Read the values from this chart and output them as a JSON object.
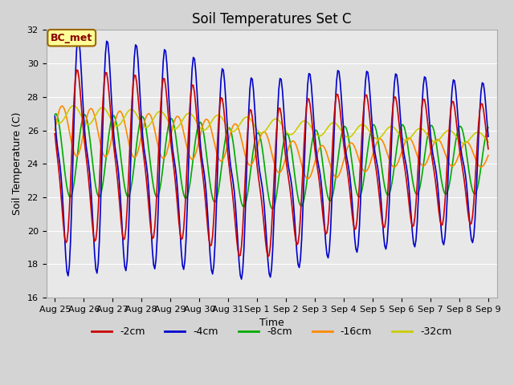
{
  "title": "Soil Temperatures Set C",
  "xlabel": "Time",
  "ylabel": "Soil Temperature (C)",
  "ylim": [
    16,
    32
  ],
  "xtick_labels": [
    "Aug 25",
    "Aug 26",
    "Aug 27",
    "Aug 28",
    "Aug 29",
    "Aug 30",
    "Aug 31",
    "Sep 1",
    "Sep 2",
    "Sep 3",
    "Sep 4",
    "Sep 5",
    "Sep 6",
    "Sep 7",
    "Sep 8",
    "Sep 9"
  ],
  "series_labels": [
    "-2cm",
    "-4cm",
    "-8cm",
    "-16cm",
    "-32cm"
  ],
  "series_colors": [
    "#cc0000",
    "#0000cc",
    "#00aa00",
    "#ff8800",
    "#cccc00"
  ],
  "legend_label": "BC_met",
  "legend_label_color": "#880000",
  "legend_bg": "#ffff99",
  "legend_border": "#996600",
  "fig_bg": "#d4d4d4",
  "plot_bg": "#e8e8e8",
  "grid_color": "#ffffff",
  "title_fontsize": 12,
  "axis_fontsize": 9,
  "tick_fontsize": 8,
  "legend_fontsize": 9,
  "line_width": 1.2
}
